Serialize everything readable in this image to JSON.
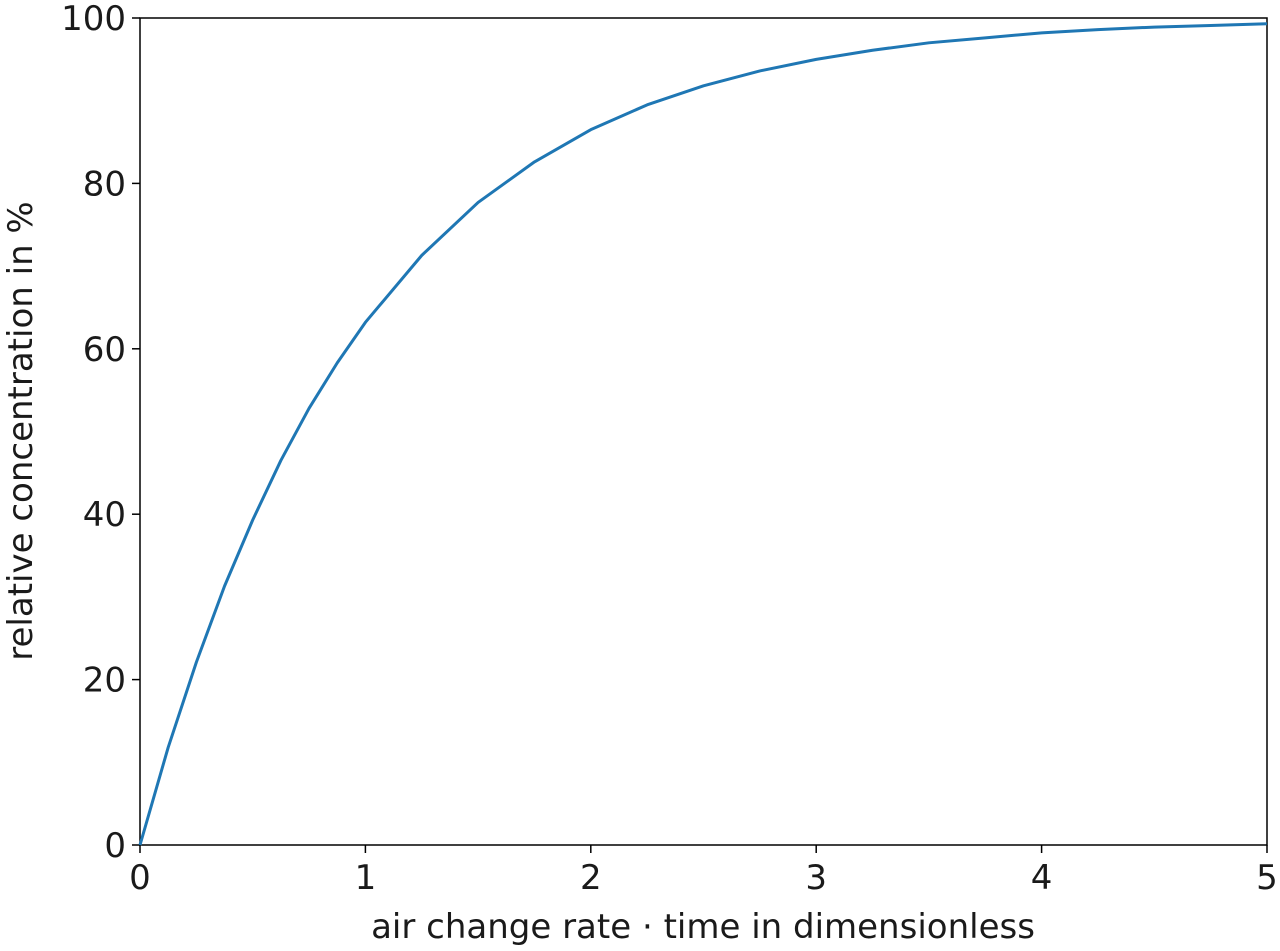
{
  "chart_data": {
    "type": "line",
    "x_label": "air change rate · time in dimensionless",
    "y_label": "relative concentration in %",
    "x": [
      0,
      0.125,
      0.25,
      0.375,
      0.5,
      0.625,
      0.75,
      0.875,
      1,
      1.25,
      1.5,
      1.75,
      2,
      2.25,
      2.5,
      2.75,
      3,
      3.25,
      3.5,
      3.75,
      4,
      4.25,
      4.5,
      4.75,
      5
    ],
    "series": [
      {
        "color": "#1f77b4",
        "values": [
          0,
          11.8,
          22.1,
          31.3,
          39.3,
          46.5,
          52.8,
          58.3,
          63.2,
          71.3,
          77.7,
          82.6,
          86.5,
          89.5,
          91.8,
          93.6,
          95.0,
          96.1,
          97.0,
          97.6,
          98.2,
          98.6,
          98.9,
          99.1,
          99.3
        ]
      }
    ],
    "xlim": [
      0,
      5
    ],
    "ylim": [
      0,
      100
    ],
    "xticks": [
      0,
      1,
      2,
      3,
      4,
      5
    ],
    "yticks": [
      0,
      20,
      40,
      60,
      80,
      100
    ],
    "grid": false
  }
}
